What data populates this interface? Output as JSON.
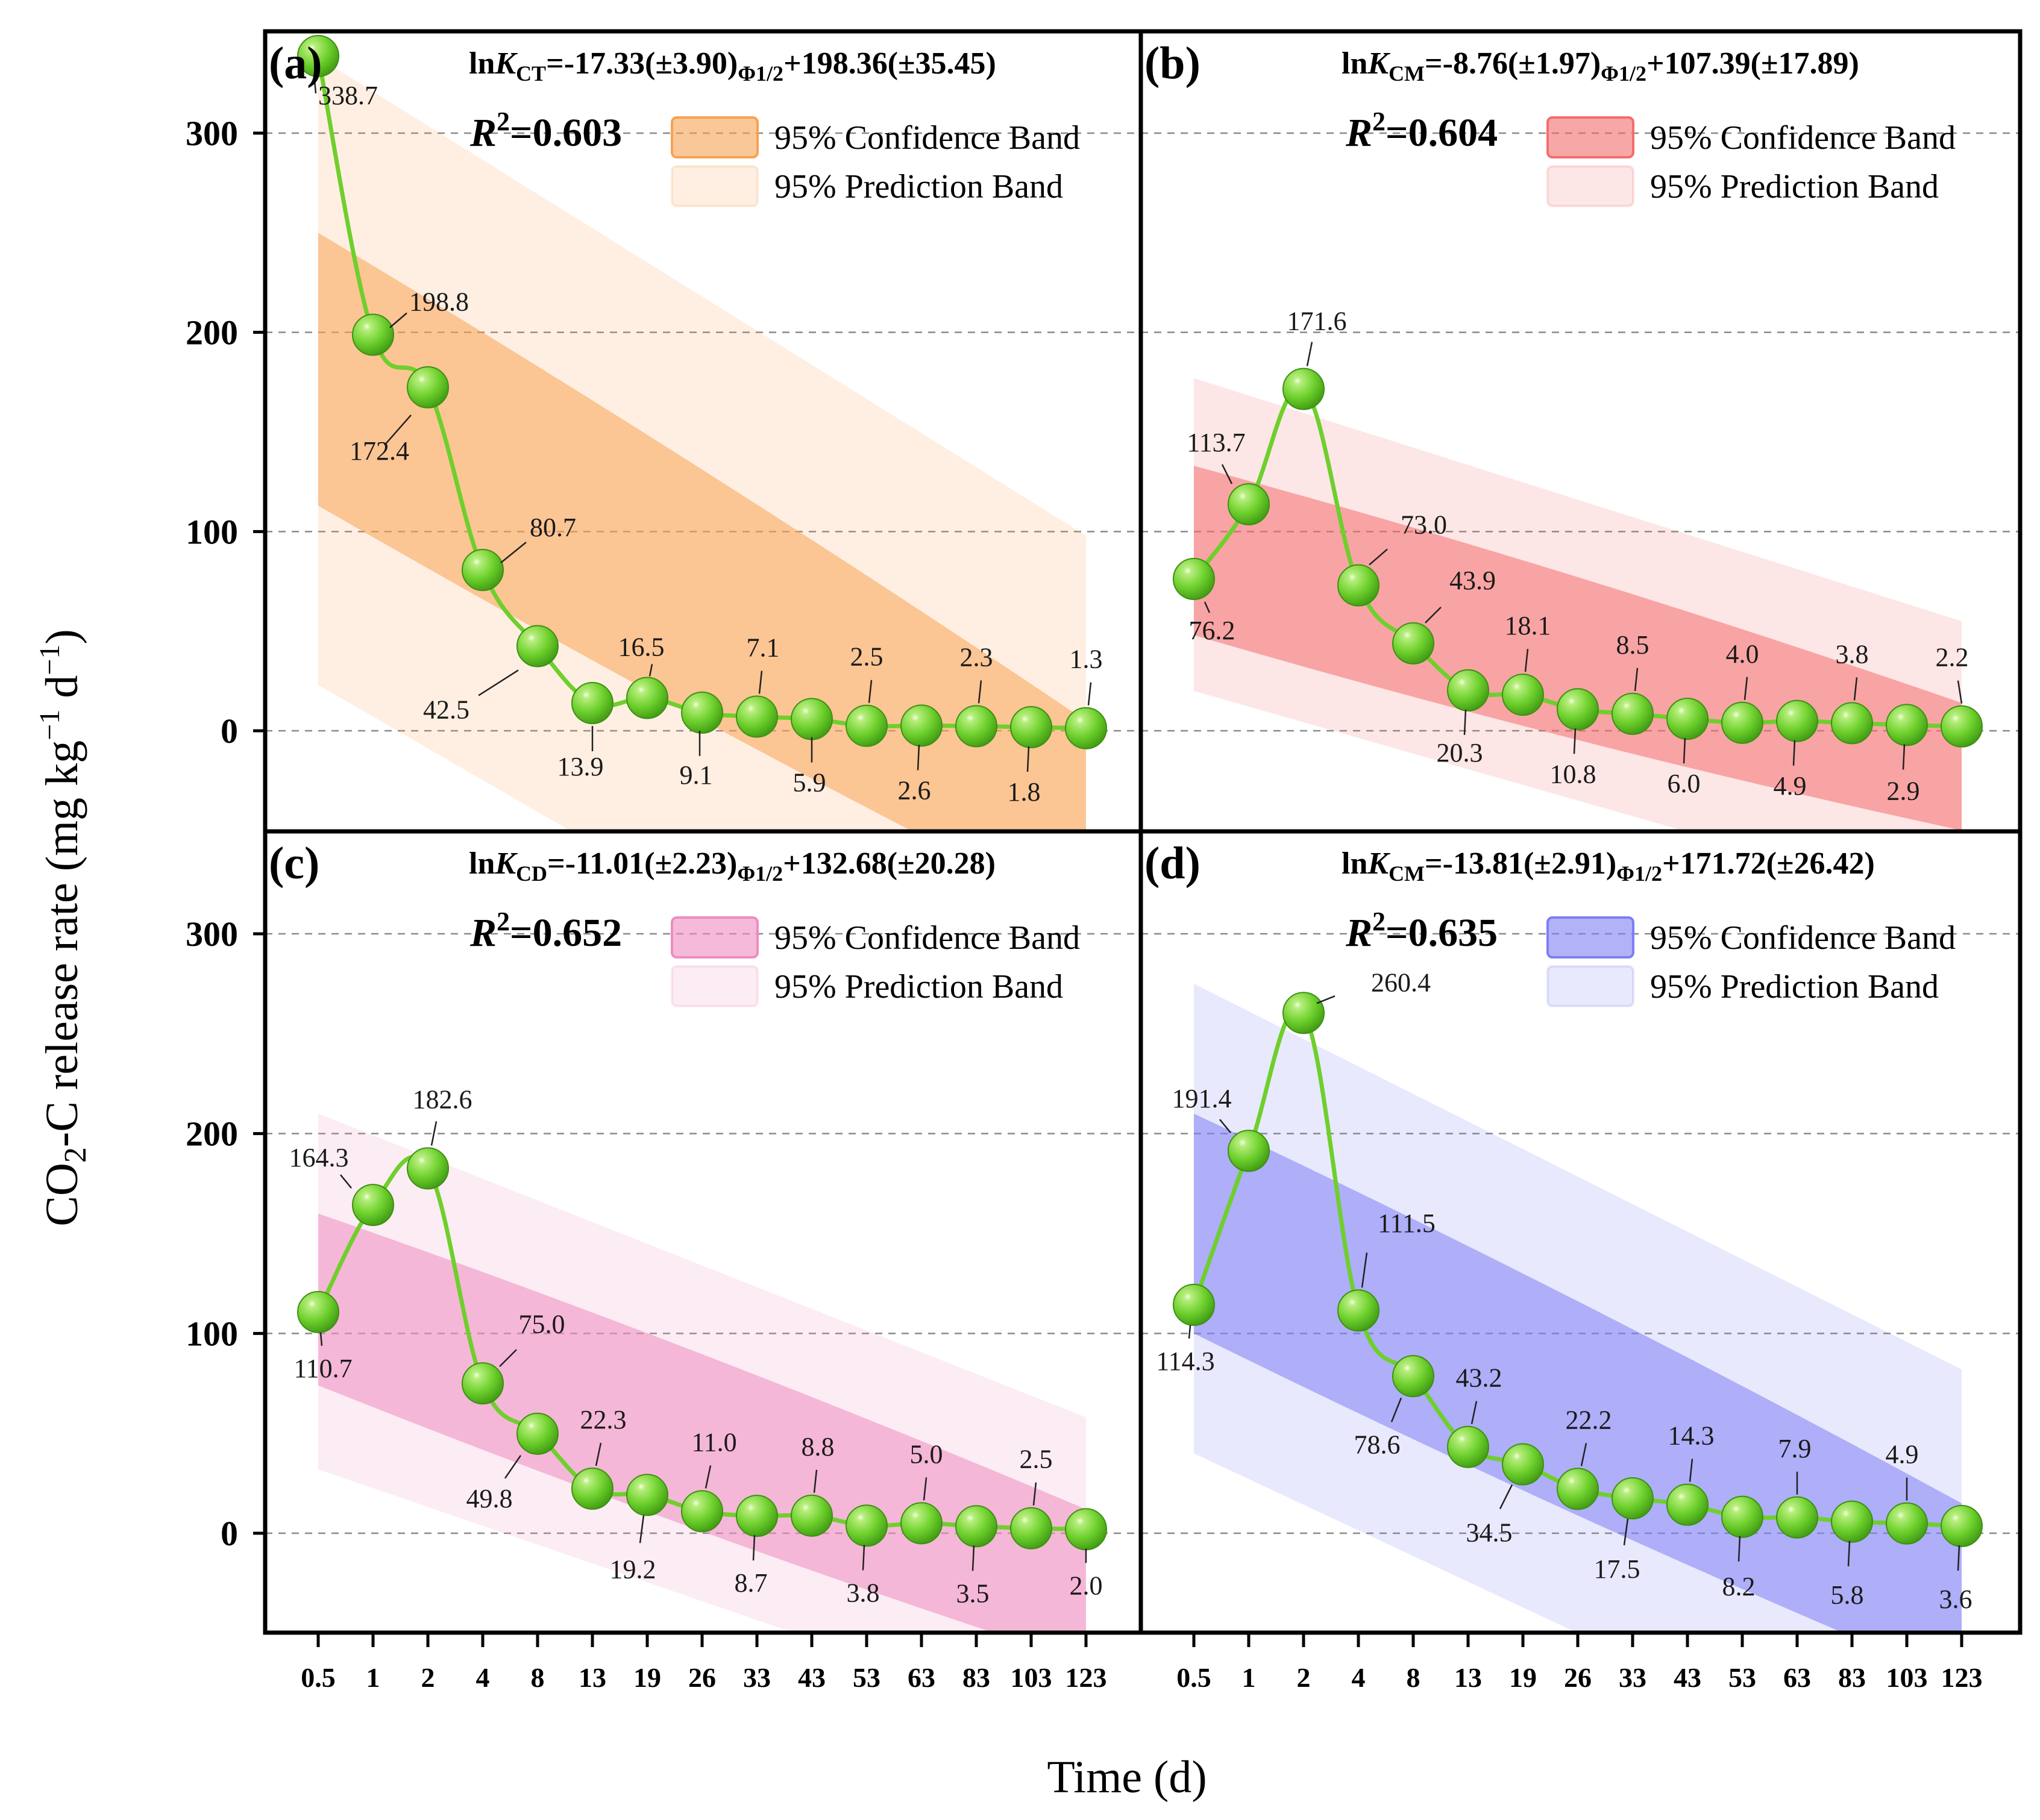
{
  "figure": {
    "ylabel": "CO₂-C release rate (mg kg⁻¹ d⁻¹)",
    "xlabel": "Time (d)"
  },
  "chart_data": [
    {
      "type": "line",
      "panel": "(a)",
      "equation": {
        "prefix": "ln",
        "k": "K",
        "ksub": "CT",
        "eq": "=-17.33(±3.90)",
        "phi": "Φ1/2",
        "tail": "+198.36(±35.45)"
      },
      "r2": "=0.603",
      "legend": [
        "95% Confidence Band",
        "95% Prediction Band"
      ],
      "color": "#f7a253",
      "x": [
        "0.5",
        "1",
        "2",
        "4",
        "8",
        "13",
        "19",
        "26",
        "33",
        "43",
        "53",
        "63",
        "83",
        "103",
        "123"
      ],
      "values": [
        338.7,
        198.8,
        172.4,
        80.7,
        42.5,
        13.9,
        16.5,
        9.1,
        7.1,
        5.9,
        2.5,
        2.6,
        2.3,
        1.8,
        1.3
      ],
      "labels": [
        "338.7",
        "198.8",
        "172.4",
        "80.7",
        "42.5",
        "13.9",
        "16.5",
        "9.1",
        "7.1",
        "5.9",
        "2.5",
        "2.6",
        "2.3",
        "1.8",
        "1.3"
      ],
      "band_confidence": {
        "start": [
          113,
          250
        ],
        "end": [
          -95,
          5
        ]
      },
      "band_prediction": {
        "start": [
          23,
          338
        ],
        "end": [
          -200,
          98
        ]
      },
      "ylim": [
        -50,
        350
      ]
    },
    {
      "type": "line",
      "panel": "(b)",
      "equation": {
        "prefix": "ln",
        "k": "K",
        "ksub": "CM",
        "eq": "=-8.76(±1.97)",
        "phi": "Φ1/2",
        "tail": "+107.39(±17.89)"
      },
      "r2": "=0.604",
      "legend": [
        "95% Confidence Band",
        "95% Prediction Band"
      ],
      "color": "#f46d6d",
      "x": [
        "0.5",
        "1",
        "2",
        "4",
        "8",
        "13",
        "19",
        "26",
        "33",
        "43",
        "53",
        "63",
        "83",
        "103",
        "123"
      ],
      "values": [
        76.2,
        113.7,
        171.6,
        73.0,
        43.9,
        20.3,
        18.1,
        10.8,
        8.5,
        6.0,
        4.0,
        4.9,
        3.8,
        2.9,
        2.2
      ],
      "labels": [
        "76.2",
        "113.7",
        "171.6",
        "73.0",
        "43.9",
        "20.3",
        "18.1",
        "10.8",
        "8.5",
        "6.0",
        "4.0",
        "4.9",
        "3.8",
        "2.9",
        "2.2"
      ],
      "band_confidence": {
        "start": [
          48,
          133
        ],
        "end": [
          -50,
          14
        ]
      },
      "band_prediction": {
        "start": [
          20,
          177
        ],
        "end": [
          -90,
          55
        ]
      },
      "ylim": [
        -50,
        350
      ]
    },
    {
      "type": "line",
      "panel": "(c)",
      "equation": {
        "prefix": "ln",
        "k": "K",
        "ksub": "CD",
        "eq": "=-11.01(±2.23)",
        "phi": "Φ1/2",
        "tail": "+132.68(±20.28)"
      },
      "r2": "=0.652",
      "legend": [
        "95% Confidence Band",
        "95% Prediction Band"
      ],
      "color": "#ee8cbf",
      "x": [
        "0.5",
        "1",
        "2",
        "4",
        "8",
        "13",
        "19",
        "26",
        "33",
        "43",
        "53",
        "63",
        "83",
        "103",
        "123"
      ],
      "values": [
        110.7,
        164.3,
        182.6,
        75.0,
        49.8,
        22.3,
        19.2,
        11.0,
        8.7,
        8.8,
        3.8,
        5.0,
        3.5,
        2.5,
        2.0
      ],
      "labels": [
        "110.7",
        "164.3",
        "182.6",
        "75.0",
        "49.8",
        "22.3",
        "19.2",
        "11.0",
        "8.7",
        "8.8",
        "3.8",
        "5.0",
        "3.5",
        "2.5",
        "2.0"
      ],
      "band_confidence": {
        "start": [
          74,
          160
        ],
        "end": [
          -65,
          12
        ]
      },
      "band_prediction": {
        "start": [
          32,
          210
        ],
        "end": [
          -100,
          58
        ]
      },
      "ylim": [
        -50,
        350
      ]
    },
    {
      "type": "line",
      "panel": "(d)",
      "equation": {
        "prefix": "ln",
        "k": "K",
        "ksub": "CM",
        "eq": "=-13.81(±2.91)",
        "phi": "Φ1/2",
        "tail": "+171.72(±26.42)"
      },
      "r2": "=0.635",
      "legend": [
        "95% Confidence Band",
        "95% Prediction Band"
      ],
      "color": "#7e7ef5",
      "x": [
        "0.5",
        "1",
        "2",
        "4",
        "8",
        "13",
        "19",
        "26",
        "33",
        "43",
        "53",
        "63",
        "83",
        "103",
        "123"
      ],
      "values": [
        114.3,
        191.4,
        260.4,
        111.5,
        78.6,
        43.2,
        34.5,
        22.2,
        17.5,
        14.3,
        8.2,
        7.9,
        5.8,
        4.9,
        3.6
      ],
      "labels": [
        "114.3",
        "191.4",
        "260.4",
        "111.5",
        "78.6",
        "43.2",
        "34.5",
        "22.2",
        "17.5",
        "14.3",
        "8.2",
        "7.9",
        "5.8",
        "4.9",
        "3.6"
      ],
      "band_confidence": {
        "start": [
          100,
          210
        ],
        "end": [
          -75,
          15
        ]
      },
      "band_prediction": {
        "start": [
          40,
          275
        ],
        "end": [
          -140,
          82
        ]
      },
      "ylim": [
        -50,
        350
      ]
    }
  ],
  "yticks": [
    "0",
    "100",
    "200",
    "300"
  ]
}
